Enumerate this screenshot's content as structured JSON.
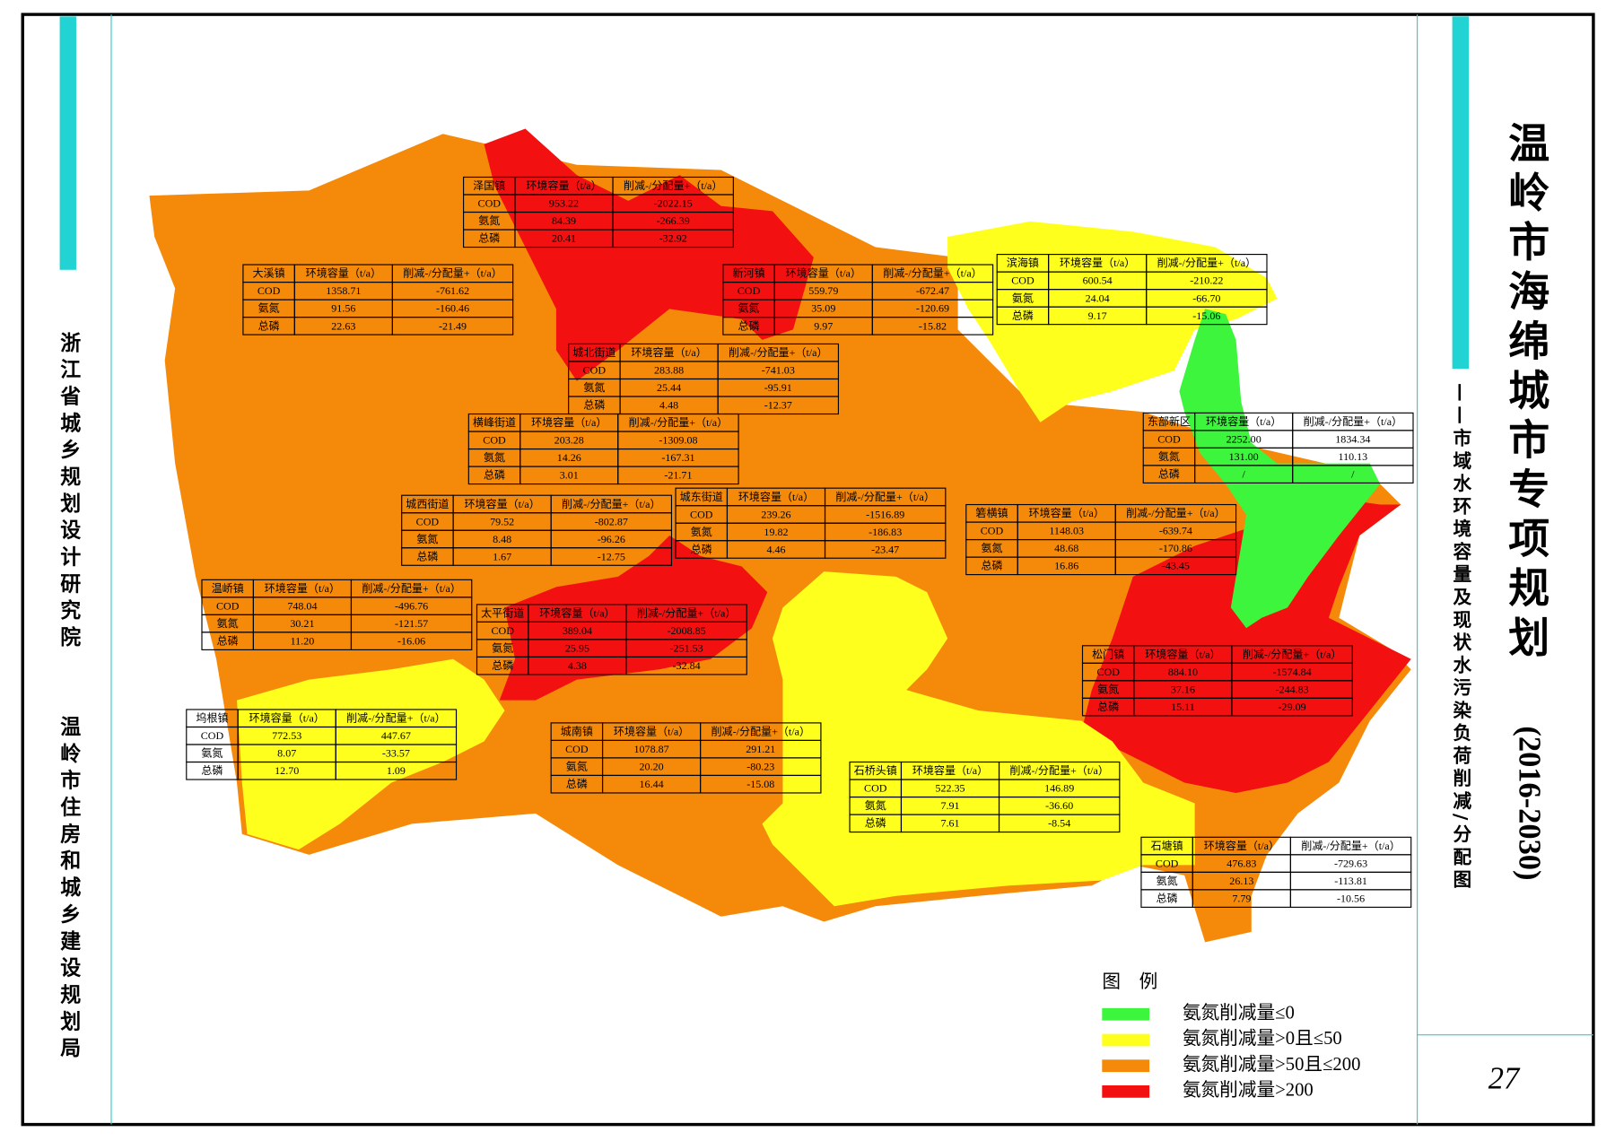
{
  "title": "温岭市海绵城市专项规划",
  "years": "(2016-2030)",
  "subtitle": "——市域水环境容量及现状水污染负荷削减/分配图",
  "organizations": [
    "浙江省城乡规划设计研究院",
    "温岭市住房和城乡建设规划局"
  ],
  "page_number": "27",
  "table_headers": [
    "环境容量（t/a）",
    "削减-/分配量+（t/a）"
  ],
  "row_labels": [
    "COD",
    "氨氮",
    "总磷"
  ],
  "towns": [
    {
      "name": "泽国镇",
      "rows": [
        [
          "953.22",
          "-2022.15"
        ],
        [
          "84.39",
          "-266.39"
        ],
        [
          "20.41",
          "-32.92"
        ]
      ]
    },
    {
      "name": "大溪镇",
      "rows": [
        [
          "1358.71",
          "-761.62"
        ],
        [
          "91.56",
          "-160.46"
        ],
        [
          "22.63",
          "-21.49"
        ]
      ]
    },
    {
      "name": "新河镇",
      "rows": [
        [
          "559.79",
          "-672.47"
        ],
        [
          "35.09",
          "-120.69"
        ],
        [
          "9.97",
          "-15.82"
        ]
      ]
    },
    {
      "name": "滨海镇",
      "rows": [
        [
          "600.54",
          "-210.22"
        ],
        [
          "24.04",
          "-66.70"
        ],
        [
          "9.17",
          "-15.06"
        ]
      ]
    },
    {
      "name": "城北街道",
      "rows": [
        [
          "283.88",
          "-741.03"
        ],
        [
          "25.44",
          "-95.91"
        ],
        [
          "4.48",
          "-12.37"
        ]
      ]
    },
    {
      "name": "东部新区",
      "rows": [
        [
          "2252.00",
          "1834.34"
        ],
        [
          "131.00",
          "110.13"
        ],
        [
          "/",
          "/"
        ]
      ]
    },
    {
      "name": "横峰街道",
      "rows": [
        [
          "203.28",
          "-1309.08"
        ],
        [
          "14.26",
          "-167.31"
        ],
        [
          "3.01",
          "-21.71"
        ]
      ]
    },
    {
      "name": "城西街道",
      "rows": [
        [
          "79.52",
          "-802.87"
        ],
        [
          "8.48",
          "-96.26"
        ],
        [
          "1.67",
          "-12.75"
        ]
      ]
    },
    {
      "name": "城东街道",
      "rows": [
        [
          "239.26",
          "-1516.89"
        ],
        [
          "19.82",
          "-186.83"
        ],
        [
          "4.46",
          "-23.47"
        ]
      ]
    },
    {
      "name": "箬横镇",
      "rows": [
        [
          "1148.03",
          "-639.74"
        ],
        [
          "48.68",
          "-170.86"
        ],
        [
          "16.86",
          "-43.45"
        ]
      ]
    },
    {
      "name": "温峤镇",
      "rows": [
        [
          "748.04",
          "-496.76"
        ],
        [
          "30.21",
          "-121.57"
        ],
        [
          "11.20",
          "-16.06"
        ]
      ]
    },
    {
      "name": "太平街道",
      "rows": [
        [
          "389.04",
          "-2008.85"
        ],
        [
          "25.95",
          "-251.53"
        ],
        [
          "4.38",
          "-32.84"
        ]
      ]
    },
    {
      "name": "松门镇",
      "rows": [
        [
          "884.10",
          "-1574.84"
        ],
        [
          "37.16",
          "-244.83"
        ],
        [
          "15.11",
          "-29.09"
        ]
      ]
    },
    {
      "name": "坞根镇",
      "rows": [
        [
          "772.53",
          "447.67"
        ],
        [
          "8.07",
          "-33.57"
        ],
        [
          "12.70",
          "1.09"
        ]
      ]
    },
    {
      "name": "城南镇",
      "rows": [
        [
          "1078.87",
          "291.21"
        ],
        [
          "20.20",
          "-80.23"
        ],
        [
          "16.44",
          "-15.08"
        ]
      ]
    },
    {
      "name": "石桥头镇",
      "rows": [
        [
          "522.35",
          "146.89"
        ],
        [
          "7.91",
          "-36.60"
        ],
        [
          "7.61",
          "-8.54"
        ]
      ]
    },
    {
      "name": "石塘镇",
      "rows": [
        [
          "476.83",
          "-729.63"
        ],
        [
          "26.13",
          "-113.81"
        ],
        [
          "7.79",
          "-10.56"
        ]
      ]
    }
  ],
  "legend": {
    "title": "图　例",
    "items": [
      {
        "label": "氨氮削减量≤0",
        "color": "#3cf53c"
      },
      {
        "label": "氨氮削减量>0且≤50",
        "color": "#ffff1e"
      },
      {
        "label": "氨氮削减量>50且≤200",
        "color": "#f58a0a"
      },
      {
        "label": "氨氮削减量>200",
        "color": "#f21010"
      }
    ]
  }
}
